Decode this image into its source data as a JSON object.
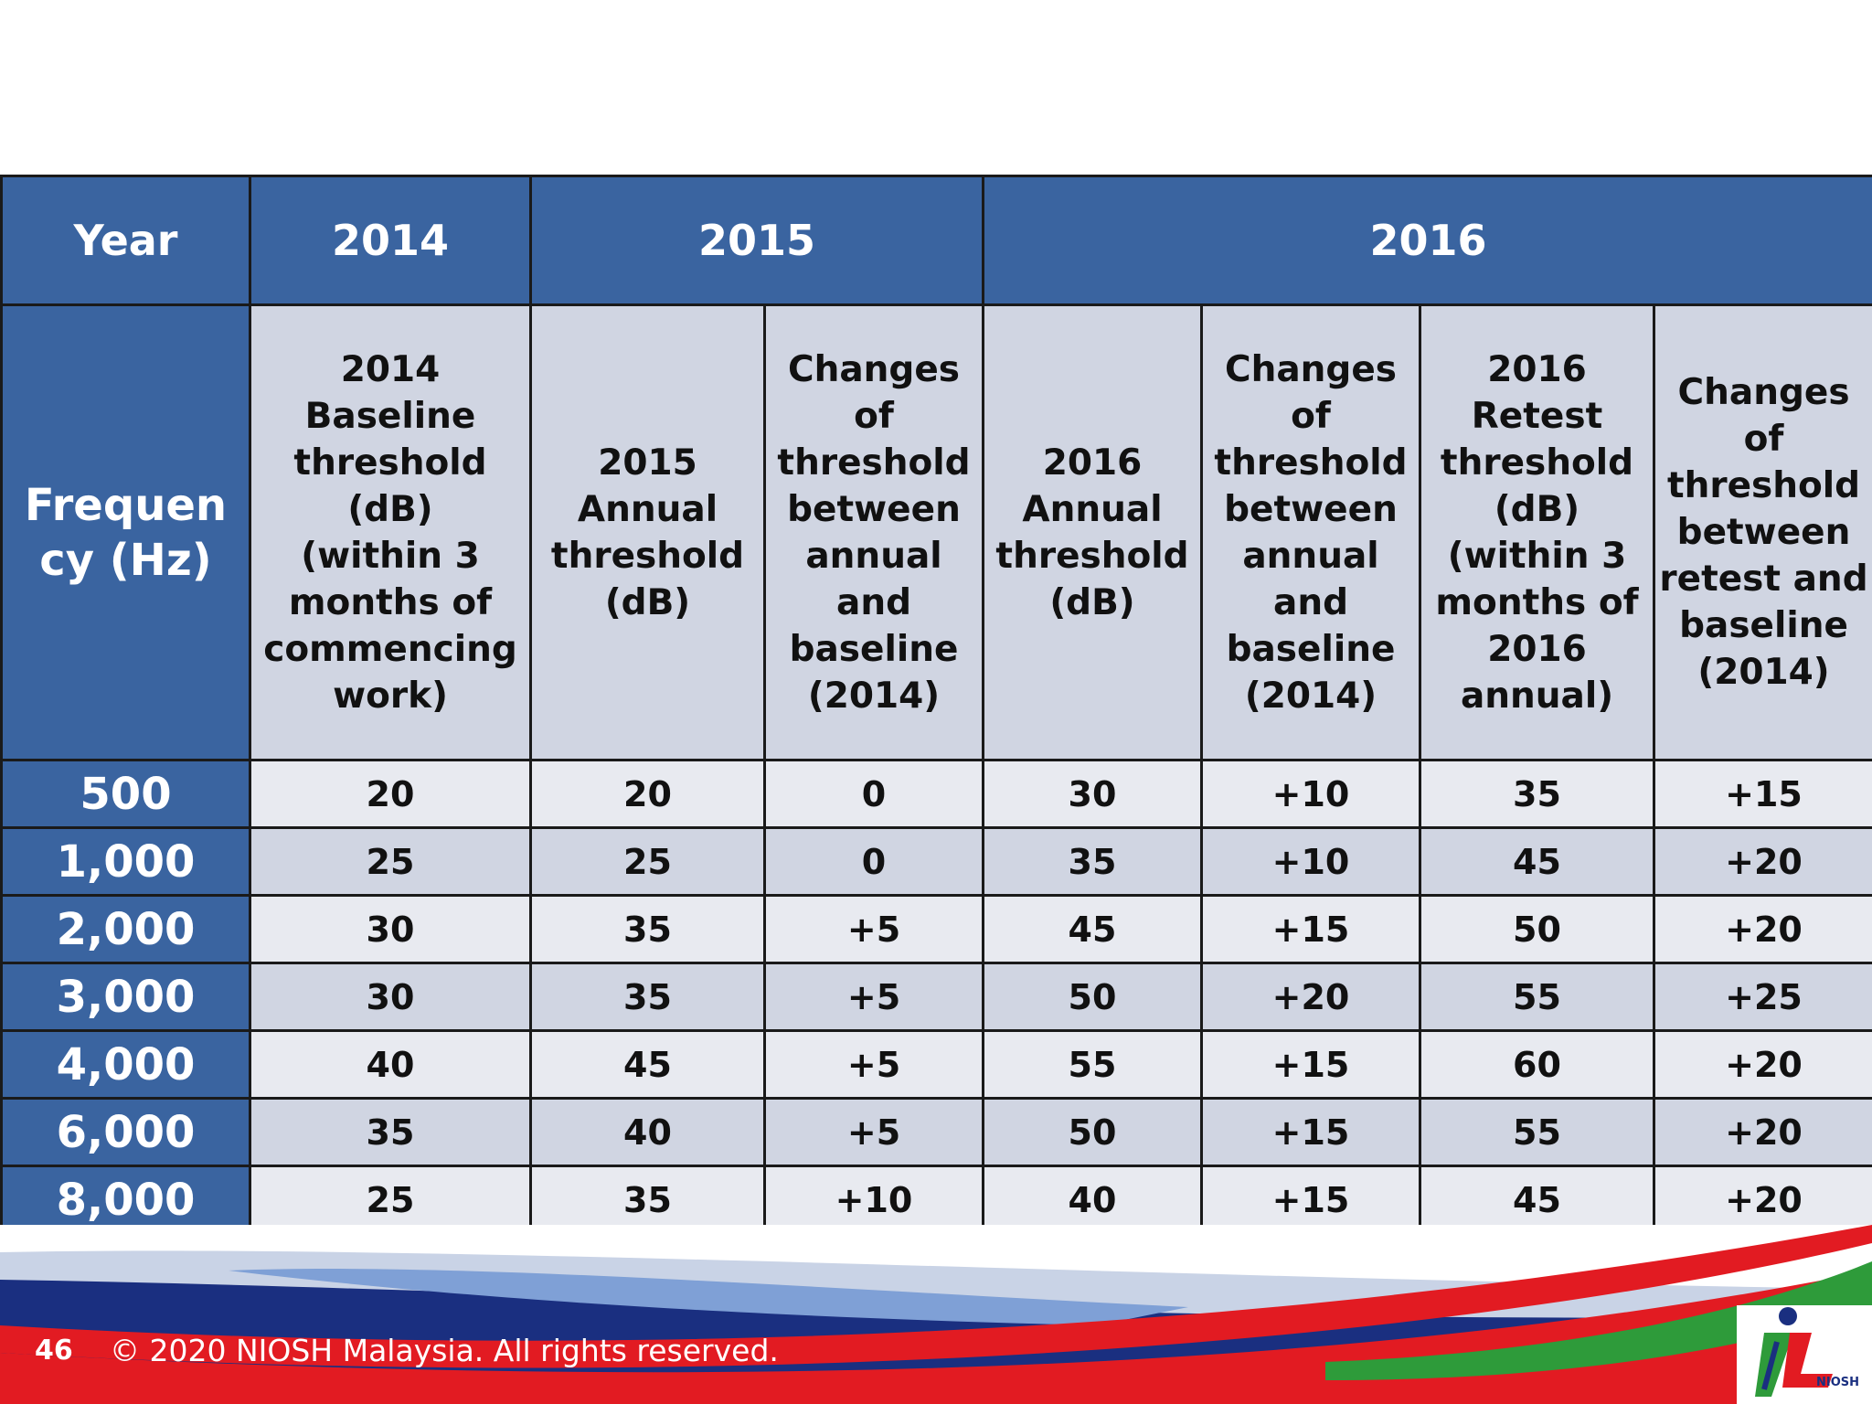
{
  "table": {
    "year_label": "Year",
    "years": [
      "2014",
      "2015",
      "2016"
    ],
    "frequency_label": "Frequency (Hz)",
    "column_headers": [
      [
        "2014 Baseline",
        "threshold",
        "(dB)",
        "(within 3",
        "months of",
        "commencing",
        "work)"
      ],
      [
        "2015",
        "Annual",
        "threshold",
        "(dB)"
      ],
      [
        "Changes",
        "of",
        "threshold",
        "between",
        "annual",
        "and",
        "baseline",
        "(2014)"
      ],
      [
        "2016",
        "Annual",
        "threshold",
        "(dB)"
      ],
      [
        "Changes",
        "of",
        "threshold",
        "between",
        "annual",
        "and",
        "baseline",
        "(2014)"
      ],
      [
        "2016 Retest",
        "threshold",
        "(dB)",
        "(within 3",
        "months of",
        "2016",
        "annual)"
      ],
      [
        "Changes",
        "of",
        "threshold",
        "between",
        "retest and",
        "baseline",
        "(2014)"
      ]
    ],
    "rows": [
      {
        "freq": "500",
        "values": [
          "20",
          "20",
          "0",
          "30",
          "+10",
          "35",
          "+15"
        ]
      },
      {
        "freq": "1,000",
        "values": [
          "25",
          "25",
          "0",
          "35",
          "+10",
          "45",
          "+20"
        ]
      },
      {
        "freq": "2,000",
        "values": [
          "30",
          "35",
          "+5",
          "45",
          "+15",
          "50",
          "+20"
        ]
      },
      {
        "freq": "3,000",
        "values": [
          "30",
          "35",
          "+5",
          "50",
          "+20",
          "55",
          "+25"
        ]
      },
      {
        "freq": "4,000",
        "values": [
          "40",
          "45",
          "+5",
          "55",
          "+15",
          "60",
          "+20"
        ]
      },
      {
        "freq": "6,000",
        "values": [
          "35",
          "40",
          "+5",
          "50",
          "+15",
          "55",
          "+20"
        ]
      },
      {
        "freq": "8,000",
        "values": [
          "25",
          "35",
          "+10",
          "40",
          "+15",
          "45",
          "+20"
        ]
      }
    ]
  },
  "footer": {
    "page_number": "46",
    "copyright": "© 2020 NIOSH Malaysia. All rights reserved.",
    "logo_text": "NIOSH"
  },
  "colors": {
    "header_blue": "#3a64a0",
    "cell_light": "#e8eaf0",
    "cell_dark": "#d0d5e2",
    "footer_red": "#e21b22",
    "footer_green": "#2e9b3a",
    "footer_navy": "#1a2f80"
  }
}
